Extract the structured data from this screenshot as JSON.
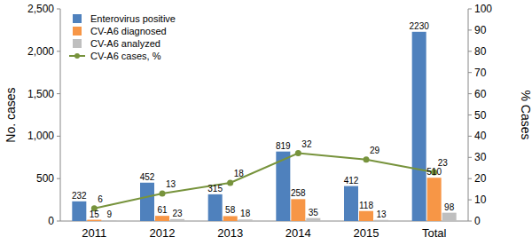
{
  "chart_data": {
    "type": "bar",
    "categories": [
      "2011",
      "2012",
      "2013",
      "2014",
      "2015",
      "Total"
    ],
    "series": [
      {
        "name": "Enterovirus positive",
        "color": "#4f81bd",
        "values": [
          232,
          452,
          315,
          819,
          412,
          2230
        ]
      },
      {
        "name": "CV-A6 diagnosed",
        "color": "#f79646",
        "values": [
          15,
          61,
          58,
          258,
          118,
          510
        ]
      },
      {
        "name": "CV-A6 analyzed",
        "color": "#bfbfbf",
        "values": [
          9,
          23,
          18,
          35,
          13,
          98
        ]
      },
      {
        "name": "CV-A6 cases, %",
        "color": "#77933c",
        "type": "line",
        "marker": "circle",
        "axis": "y2",
        "values": [
          6,
          13,
          18,
          32,
          29,
          23
        ]
      }
    ],
    "y_label": "No. cases",
    "y2_label": "% Cases",
    "ylim": [
      0,
      2500
    ],
    "yticks": [
      0,
      500,
      {
        "value": 1000,
        "label": "1,000"
      },
      {
        "value": 1500,
        "label": "1,500"
      },
      {
        "value": 2000,
        "label": "2,000"
      },
      {
        "value": 2500,
        "label": "2,500"
      }
    ],
    "y2lim": [
      0,
      100
    ],
    "y2ticks": [
      0,
      10,
      20,
      30,
      40,
      50,
      60,
      70,
      80,
      90,
      100
    ],
    "data_labels": true,
    "grid": false,
    "legend": "top-left"
  }
}
